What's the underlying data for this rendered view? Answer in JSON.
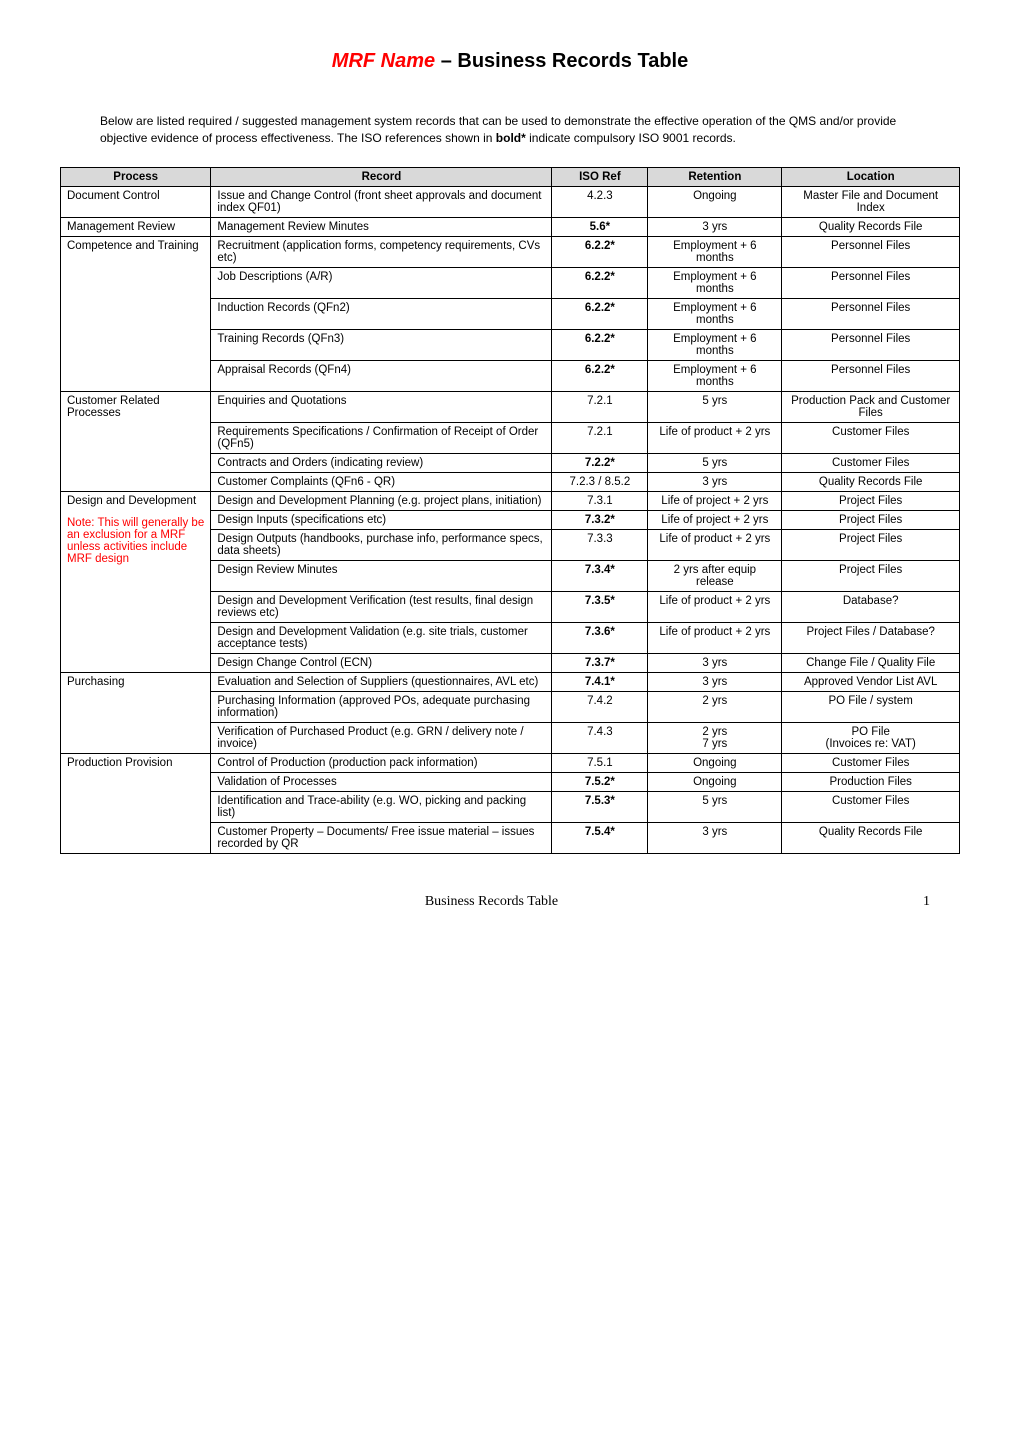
{
  "title": {
    "mrf": "MRF Name",
    "separator": " – ",
    "rest": "Business Records Table"
  },
  "intro": {
    "text_before_bold": "Below are listed required / suggested management system records that can be used to demonstrate the effective operation of the QMS and/or provide objective evidence of process effectiveness. The ISO references shown in ",
    "bold_word": "bold*",
    "text_after_bold": " indicate compulsory ISO 9001 records."
  },
  "table": {
    "header_bg": "#d9d9d9",
    "headers": {
      "process": "Process",
      "record": "Record",
      "isoref": "ISO Ref",
      "retention": "Retention",
      "location": "Location"
    }
  },
  "groups": [
    {
      "process": "Document Control",
      "process_html": "Document Control",
      "rows": [
        {
          "record": "Issue and Change Control (front sheet approvals and document index QF01)",
          "iso": "4.2.3",
          "iso_bold": false,
          "retention": "Ongoing",
          "location": "Master File and Document Index"
        }
      ]
    },
    {
      "process": "Management Review",
      "rows": [
        {
          "record": "Management Review Minutes",
          "iso": "5.6*",
          "iso_bold": true,
          "retention": "3 yrs",
          "location": "Quality Records File"
        }
      ]
    },
    {
      "process": "Competence and Training",
      "rows": [
        {
          "record": "Recruitment (application forms, competency requirements, CVs etc)",
          "iso": "6.2.2*",
          "iso_bold": true,
          "retention": "Employment + 6 months",
          "location": "Personnel Files"
        },
        {
          "record": "Job Descriptions (A/R)",
          "iso": "6.2.2*",
          "iso_bold": true,
          "retention": "Employment + 6 months",
          "location": "Personnel Files"
        },
        {
          "record": "Induction Records (QFn2)",
          "iso": "6.2.2*",
          "iso_bold": true,
          "retention": "Employment + 6 months",
          "location": "Personnel Files"
        },
        {
          "record": "Training Records (QFn3)",
          "iso": "6.2.2*",
          "iso_bold": true,
          "retention": "Employment + 6 months",
          "location": "Personnel Files"
        },
        {
          "record": "Appraisal Records (QFn4)",
          "iso": "6.2.2*",
          "iso_bold": true,
          "retention": "Employment + 6 months",
          "location": "Personnel Files"
        }
      ]
    },
    {
      "process": "Customer Related Processes",
      "rows": [
        {
          "record": "Enquiries and Quotations",
          "iso": "7.2.1",
          "iso_bold": false,
          "retention": "5 yrs",
          "location": "Production Pack and Customer Files"
        },
        {
          "record": "Requirements Specifications / Confirmation of Receipt of Order (QFn5)",
          "iso": "7.2.1",
          "iso_bold": false,
          "retention": "Life of product + 2 yrs",
          "location": "Customer Files"
        },
        {
          "record": "Contracts and Orders (indicating review)",
          "iso": "7.2.2*",
          "iso_bold": true,
          "retention": "5 yrs",
          "location": "Customer Files"
        },
        {
          "record": "Customer Complaints (QFn6 - QR)",
          "iso": "7.2.3 / 8.5.2",
          "iso_bold": false,
          "retention": "3 yrs",
          "location": "Quality Records File"
        }
      ]
    },
    {
      "process": "Design and Development",
      "process_note": "Note: This will generally be an exclusion for a MRF unless activities include MRF design",
      "rows": [
        {
          "record": "Design and Development Planning (e.g. project plans, initiation)",
          "iso": "7.3.1",
          "iso_bold": false,
          "retention": "Life of project + 2 yrs",
          "location": "Project Files"
        },
        {
          "record": "Design Inputs (specifications etc)",
          "iso": "7.3.2*",
          "iso_bold": true,
          "retention": "Life of project + 2 yrs",
          "location": "Project Files"
        },
        {
          "record": "Design Outputs (handbooks, purchase info, performance specs, data sheets)",
          "iso": "7.3.3",
          "iso_bold": false,
          "retention": "Life of product + 2 yrs",
          "location": "Project Files"
        },
        {
          "record": "Design Review Minutes",
          "iso": "7.3.4*",
          "iso_bold": true,
          "retention": "2 yrs after equip release",
          "location": "Project Files"
        },
        {
          "record": "Design and Development Verification (test results, final design reviews etc)",
          "iso": "7.3.5*",
          "iso_bold": true,
          "retention": "Life of product + 2 yrs",
          "location": "Database?"
        },
        {
          "record": "Design and Development Validation (e.g. site trials, customer acceptance tests)",
          "iso": "7.3.6*",
          "iso_bold": true,
          "retention": "Life of product + 2 yrs",
          "location": "Project Files / Database?"
        },
        {
          "record": "Design Change Control (ECN)",
          "iso": "7.3.7*",
          "iso_bold": true,
          "retention": "3 yrs",
          "location": "Change File / Quality File"
        }
      ]
    },
    {
      "process": "Purchasing",
      "rows": [
        {
          "record": "Evaluation and Selection of Suppliers (questionnaires, AVL etc)",
          "iso": "7.4.1*",
          "iso_bold": true,
          "retention": "3 yrs",
          "location": "Approved Vendor List AVL"
        },
        {
          "record": "Purchasing Information (approved POs, adequate purchasing information)",
          "iso": "7.4.2",
          "iso_bold": false,
          "retention": "2 yrs",
          "location": "PO File / system"
        },
        {
          "record_html": "Verification of Purchased Product (e.g. GRN / delivery note / invoice)",
          "record": "Verification of Purchased Product (e.g. GRN / delivery note / invoice)",
          "iso": "7.4.3",
          "iso_bold": false,
          "retention_html": "2 yrs\n7 yrs",
          "retention": "2 yrs 7 yrs",
          "location_html": "PO File\n(Invoices re: VAT)",
          "location": "PO File (Invoices re: VAT)"
        }
      ]
    },
    {
      "process": "Production Provision",
      "rows": [
        {
          "record": "Control of Production (production pack information)",
          "iso": "7.5.1",
          "iso_bold": false,
          "retention": "Ongoing",
          "location": "Customer Files"
        },
        {
          "record": "Validation of Processes",
          "iso": "7.5.2*",
          "iso_bold": true,
          "retention": "Ongoing",
          "location": "Production Files"
        },
        {
          "record": "Identification and Trace-ability (e.g. WO, picking and packing list)",
          "iso": "7.5.3*",
          "iso_bold": true,
          "retention": "5 yrs",
          "location": "Customer Files"
        },
        {
          "record": "Customer Property – Documents/ Free issue material – issues recorded by QR",
          "iso": "7.5.4*",
          "iso_bold": true,
          "retention": "3 yrs",
          "location": "Quality Records File"
        }
      ]
    }
  ],
  "footer": {
    "text": "Business Records Table",
    "page": "1"
  }
}
